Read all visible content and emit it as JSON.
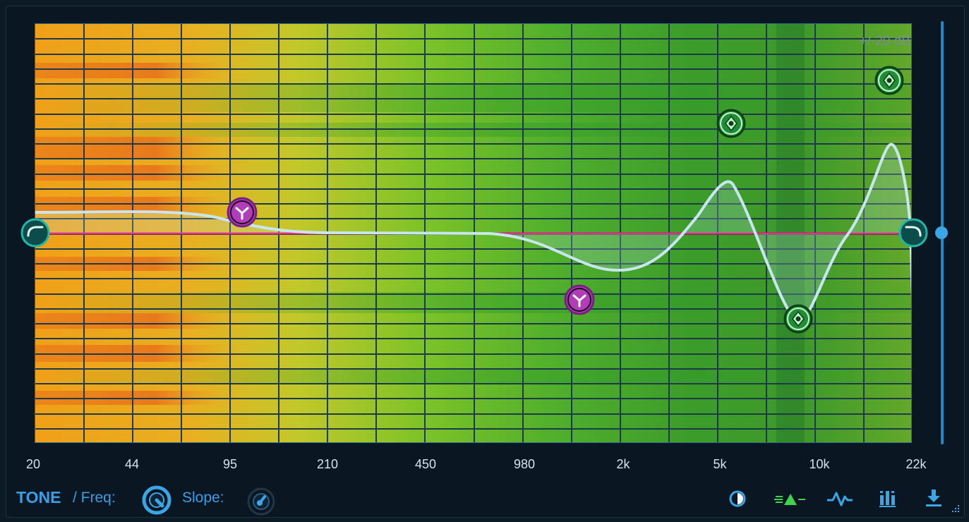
{
  "plugin": {
    "section_title": "TONE",
    "freq_label": "/ Freq:",
    "slope_label": "Slope:"
  },
  "display": {
    "db_scale_label": "+/-20 dB",
    "freq_axis": [
      "20",
      "44",
      "95",
      "210",
      "450",
      "980",
      "2k",
      "5k",
      "10k",
      "22k"
    ]
  },
  "eq_nodes": [
    {
      "name": "low-cut-node",
      "type": "high-pass",
      "color": "#1fb8a8"
    },
    {
      "name": "bell-node-1",
      "type": "bell",
      "color": "#b23db8"
    },
    {
      "name": "bell-node-2",
      "type": "bell",
      "color": "#b23db8"
    },
    {
      "name": "band-node-3",
      "type": "peak",
      "color": "#2db04a"
    },
    {
      "name": "band-node-4",
      "type": "peak",
      "color": "#2db04a"
    },
    {
      "name": "band-node-5",
      "type": "peak",
      "color": "#2db04a"
    },
    {
      "name": "high-cut-node",
      "type": "low-pass",
      "color": "#1fb8a8"
    }
  ],
  "colors": {
    "accent": "#3a9ee6",
    "curve": "#c9e6f0",
    "zero_line": "#d8207a",
    "peak_node": "#2db04a",
    "bell_node": "#b23db8",
    "cut_node": "#1fb8a8"
  },
  "toolbar": {
    "icons": [
      "contrast-icon",
      "spectrum-icon",
      "waveform-icon",
      "meter-bars-icon",
      "download-icon"
    ]
  }
}
